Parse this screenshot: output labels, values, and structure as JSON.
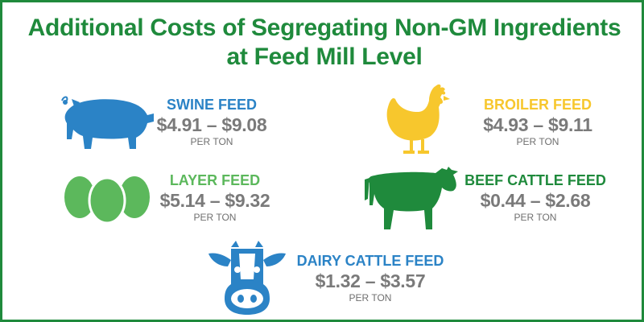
{
  "title": {
    "line1": "Additional Costs of Segregating Non-GM Ingredients",
    "line2": "at Feed Mill Level"
  },
  "colors": {
    "green_dark": "#1f8a3c",
    "blue": "#2b83c6",
    "yellow": "#f7c72d",
    "green_light": "#5cb85c",
    "gray": "#7a7a7a"
  },
  "items": [
    {
      "name": "SWINE FEED",
      "price": "$4.91 – $9.08",
      "unit": "PER TON",
      "icon": "pig-icon",
      "color": "#2b83c6"
    },
    {
      "name": "BROILER FEED",
      "price": "$4.93 – $9.11",
      "unit": "PER TON",
      "icon": "chicken-icon",
      "color": "#f7c72d"
    },
    {
      "name": "LAYER FEED",
      "price": "$5.14 – $9.32",
      "unit": "PER TON",
      "icon": "eggs-icon",
      "color": "#5cb85c"
    },
    {
      "name": "BEEF CATTLE FEED",
      "price": "$0.44 – $2.68",
      "unit": "PER TON",
      "icon": "cow-icon",
      "color": "#1f8a3c"
    },
    {
      "name": "DAIRY CATTLE FEED",
      "price": "$1.32 – $3.57",
      "unit": "PER TON",
      "icon": "dairy-cow-face-icon",
      "color": "#2b83c6"
    }
  ]
}
